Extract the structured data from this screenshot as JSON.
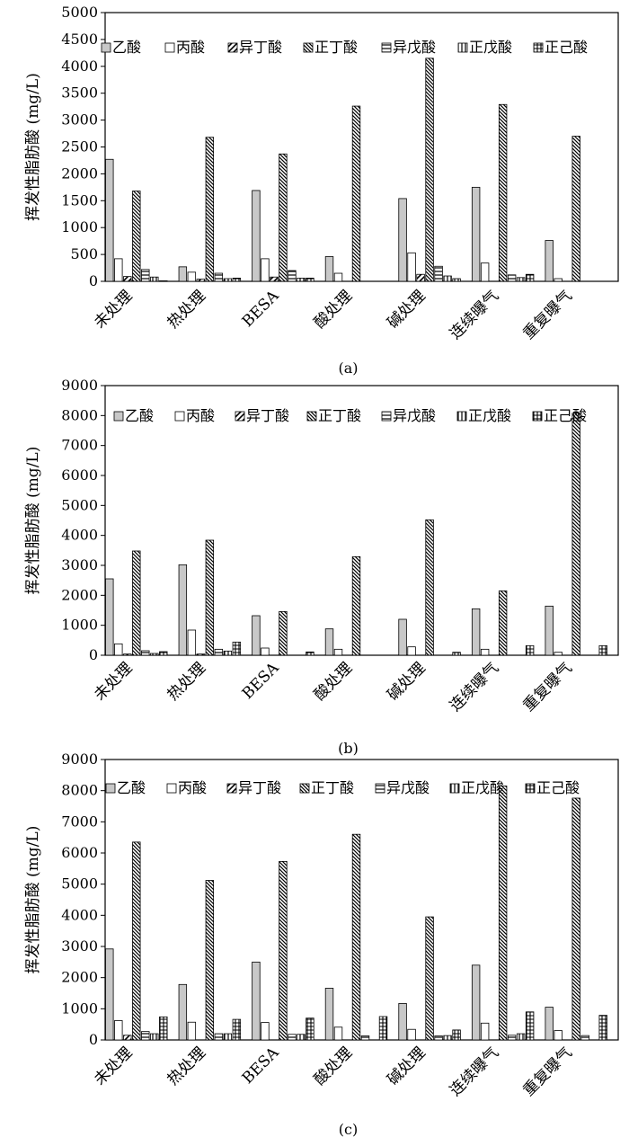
{
  "series_styles": [
    {
      "fill": "#c8c8c8",
      "pattern": "solid"
    },
    {
      "fill": "#ffffff",
      "pattern": "blank"
    },
    {
      "fill": "url(#pat-diag-wide)",
      "pattern": "diag-wide"
    },
    {
      "fill": "url(#pat-diag-dense)",
      "pattern": "diag-dense"
    },
    {
      "fill": "url(#pat-horiz)",
      "pattern": "horizontal"
    },
    {
      "fill": "url(#pat-vert)",
      "pattern": "vertical"
    },
    {
      "fill": "url(#pat-grid)",
      "pattern": "grid"
    }
  ],
  "chart_data": [
    {
      "type": "bar",
      "panel_label": "(a)",
      "ylabel": "挥发性脂肪酸 (mg/L)",
      "ylim": [
        0,
        5000
      ],
      "yticks": [
        0,
        500,
        1000,
        1500,
        2000,
        2500,
        3000,
        3500,
        4000,
        4500,
        5000
      ],
      "categories": [
        "未处理",
        "热处理",
        "BESA",
        "酸处理",
        "碱处理",
        "连续曝气",
        "重复曝气"
      ],
      "legend": [
        "乙酸",
        "丙酸",
        "异丁酸",
        "正丁酸",
        "异戊酸",
        "正戊酸",
        "正己酸"
      ],
      "series": [
        {
          "name": "乙酸",
          "values": [
            2270,
            270,
            1690,
            460,
            1540,
            1750,
            760
          ]
        },
        {
          "name": "丙酸",
          "values": [
            420,
            170,
            420,
            150,
            530,
            340,
            50
          ]
        },
        {
          "name": "异丁酸",
          "values": [
            90,
            40,
            80,
            0,
            130,
            0,
            0
          ]
        },
        {
          "name": "正丁酸",
          "values": [
            1680,
            2680,
            2370,
            3260,
            4150,
            3290,
            2700
          ]
        },
        {
          "name": "异戊酸",
          "values": [
            220,
            150,
            200,
            0,
            280,
            120,
            0
          ]
        },
        {
          "name": "正戊酸",
          "values": [
            80,
            50,
            60,
            0,
            100,
            70,
            0
          ]
        },
        {
          "name": "正己酸",
          "values": [
            10,
            60,
            60,
            0,
            50,
            130,
            0
          ]
        }
      ]
    },
    {
      "type": "bar",
      "panel_label": "(b)",
      "ylabel": "挥发性脂肪酸 (mg/L)",
      "ylim": [
        0,
        9000
      ],
      "yticks": [
        0,
        1000,
        2000,
        3000,
        4000,
        5000,
        6000,
        7000,
        8000,
        9000
      ],
      "categories": [
        "未处理",
        "热处理",
        "BESA",
        "酸处理",
        "碱处理",
        "连续曝气",
        "重复曝气"
      ],
      "legend": [
        "乙酸",
        "丙酸",
        "异丁酸",
        "正丁酸",
        "异戊酸",
        "正戊酸",
        "正己酸"
      ],
      "series": [
        {
          "name": "乙酸",
          "values": [
            2550,
            3020,
            1320,
            880,
            1200,
            1550,
            1640
          ]
        },
        {
          "name": "丙酸",
          "values": [
            380,
            840,
            240,
            200,
            280,
            200,
            100
          ]
        },
        {
          "name": "异丁酸",
          "values": [
            40,
            40,
            0,
            0,
            0,
            0,
            0
          ]
        },
        {
          "name": "正丁酸",
          "values": [
            3480,
            3840,
            1460,
            3290,
            4520,
            2150,
            8080
          ]
        },
        {
          "name": "异戊酸",
          "values": [
            150,
            200,
            0,
            0,
            0,
            0,
            0
          ]
        },
        {
          "name": "正戊酸",
          "values": [
            60,
            140,
            0,
            0,
            0,
            0,
            0
          ]
        },
        {
          "name": "正己酸",
          "values": [
            120,
            440,
            110,
            0,
            100,
            320,
            320
          ]
        }
      ]
    },
    {
      "type": "bar",
      "panel_label": "(c)",
      "ylabel": "挥发性脂肪酸 (mg/L)",
      "ylim": [
        0,
        9000
      ],
      "yticks": [
        0,
        1000,
        2000,
        3000,
        4000,
        5000,
        6000,
        7000,
        8000,
        9000
      ],
      "categories": [
        "未处理",
        "热处理",
        "BESA",
        "酸处理",
        "碱处理",
        "连续曝气",
        "重复曝气"
      ],
      "legend": [
        "乙酸",
        "丙酸",
        "异丁酸",
        "正丁酸",
        "异戊酸",
        "正戊酸",
        "正己酸"
      ],
      "series": [
        {
          "name": "乙酸",
          "values": [
            2920,
            1780,
            2500,
            1660,
            1170,
            2400,
            1050
          ]
        },
        {
          "name": "丙酸",
          "values": [
            620,
            570,
            560,
            410,
            340,
            540,
            300
          ]
        },
        {
          "name": "异丁酸",
          "values": [
            150,
            0,
            0,
            0,
            0,
            0,
            0
          ]
        },
        {
          "name": "正丁酸",
          "values": [
            6350,
            5120,
            5730,
            6600,
            3950,
            8150,
            7760
          ]
        },
        {
          "name": "异戊酸",
          "values": [
            270,
            200,
            180,
            130,
            130,
            150,
            140
          ]
        },
        {
          "name": "正戊酸",
          "values": [
            200,
            200,
            180,
            0,
            140,
            200,
            0
          ]
        },
        {
          "name": "正己酸",
          "values": [
            740,
            660,
            700,
            750,
            320,
            900,
            790
          ]
        }
      ]
    }
  ]
}
